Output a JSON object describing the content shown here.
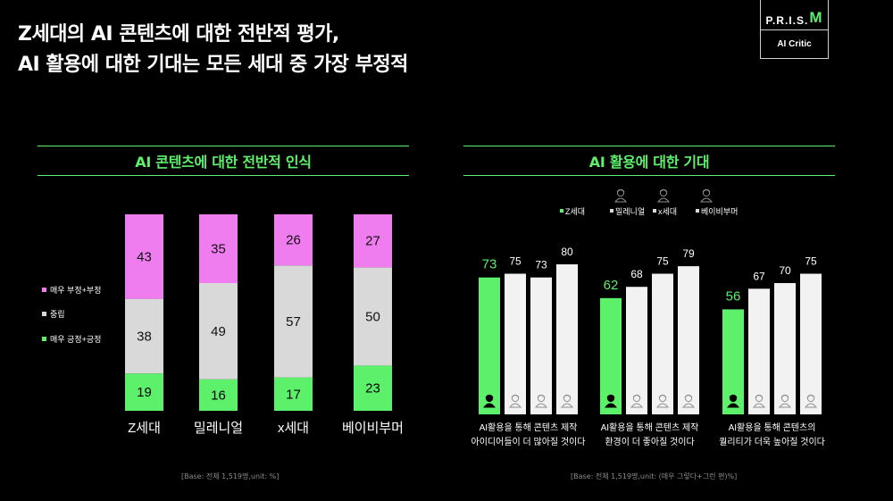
{
  "header": {
    "title_line1": "Z세대의 AI 콘텐츠에 대한 전반적 평가,",
    "title_line2": "AI 활용에 대한 기대는 모든 세대 중 가장 부정적"
  },
  "logo": {
    "brand_prefix": "P.R.I.S.",
    "brand_m": "M",
    "subtitle": "AI Critic"
  },
  "left_panel": {
    "title": "AI  콘텐츠에 대한 전반적 인식",
    "base_note": "[Base: 전체 1,519명,unit: %]"
  },
  "right_panel": {
    "title": "AI 활용에 대한 기대",
    "base_note": "[Base: 전체 1,519명,unit: (매우 그렇다+그런 편)%]"
  },
  "colors": {
    "accent": "#5cf06b",
    "pink": "#f07df0",
    "gray": "#d9d9d9",
    "white_bar": "#f2f2f2"
  },
  "chart_data": [
    {
      "type": "bar",
      "stacked": true,
      "percent": true,
      "title": "AI  콘텐츠에 대한 전반적 인식",
      "categories": [
        "Z세대",
        "밀레니얼",
        "x세대",
        "베이비부머"
      ],
      "series": [
        {
          "name": "매우 긍정+긍정",
          "color": "#5cf06b",
          "values": [
            19,
            16,
            17,
            23
          ]
        },
        {
          "name": "중립",
          "color": "#d9d9d9",
          "values": [
            38,
            49,
            57,
            50
          ]
        },
        {
          "name": "매우 부정+부정",
          "color": "#f07df0",
          "values": [
            43,
            35,
            26,
            27
          ]
        }
      ],
      "legend_order": [
        "매우 부정+부정",
        "중립",
        "매우 긍정+긍정"
      ],
      "legend": "left"
    },
    {
      "type": "bar",
      "title": "AI 활용에 대한 기대",
      "groups": [
        {
          "label_line1": "AI활용을 통해 콘텐츠 제작",
          "label_line2": "아이디어들이 더 많아질 것이다"
        },
        {
          "label_line1": "AI활용을 통해 콘텐츠 제작",
          "label_line2": "환경이 더 좋아질 것이다"
        },
        {
          "label_line1": "AI활용을 통해 콘텐츠의",
          "label_line2": "퀄리티가 더욱 높아질 것이다"
        }
      ],
      "series": [
        {
          "name": "Z세대",
          "color": "#5cf06b",
          "values": [
            73,
            62,
            56
          ]
        },
        {
          "name": "밀레니얼",
          "color": "#f2f2f2",
          "values": [
            75,
            68,
            67
          ]
        },
        {
          "name": "x세대",
          "color": "#f2f2f2",
          "values": [
            73,
            75,
            70
          ]
        },
        {
          "name": "베이비부머",
          "color": "#f2f2f2",
          "values": [
            80,
            79,
            75
          ]
        }
      ],
      "legend": "top",
      "ylim": [
        0,
        100
      ]
    }
  ]
}
